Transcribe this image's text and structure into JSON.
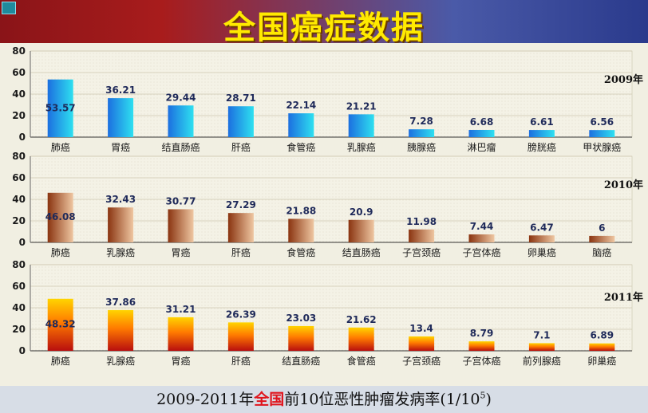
{
  "header": {
    "title": "全国癌症数据"
  },
  "footer": {
    "part1": "2009-2011年",
    "part2": "全国",
    "part3": "前10位恶性肿瘤发病率(1/10",
    "sup": "5",
    "part4": ")"
  },
  "chart_data": [
    {
      "type": "bar",
      "title": "2009年",
      "ylim": [
        0,
        80
      ],
      "yticks": [
        0,
        20,
        40,
        60,
        80
      ],
      "grid": true,
      "categories": [
        "肺癌",
        "胃癌",
        "结直肠癌",
        "肝癌",
        "食管癌",
        "乳腺癌",
        "胰腺癌",
        "淋巴瘤",
        "膀胱癌",
        "甲状腺癌"
      ],
      "values": [
        53.57,
        36.21,
        29.44,
        28.71,
        22.14,
        21.21,
        7.28,
        6.68,
        6.61,
        6.56
      ],
      "labels": [
        "53.57",
        "36.21",
        "29.44",
        "28.71",
        "22.14",
        "21.21",
        "7.28",
        "6.68",
        "6.61",
        "6.56"
      ],
      "color": "#1e88e0"
    },
    {
      "type": "bar",
      "title": "2010年",
      "ylim": [
        0,
        80
      ],
      "yticks": [
        0,
        20,
        40,
        60,
        80
      ],
      "grid": true,
      "categories": [
        "肺癌",
        "乳腺癌",
        "胃癌",
        "肝癌",
        "食管癌",
        "结直肠癌",
        "子宫颈癌",
        "子宫体癌",
        "卵巢癌",
        "脑癌"
      ],
      "values": [
        46.08,
        32.43,
        30.77,
        27.29,
        21.88,
        20.9,
        11.98,
        7.44,
        6.47,
        6
      ],
      "labels": [
        "46.08",
        "32.43",
        "30.77",
        "27.29",
        "21.88",
        "20.9",
        "11.98",
        "7.44",
        "6.47",
        "6"
      ],
      "color": "#9a4a22"
    },
    {
      "type": "bar",
      "title": "2011年",
      "ylim": [
        0,
        80
      ],
      "yticks": [
        0,
        20,
        40,
        60,
        80
      ],
      "grid": true,
      "categories": [
        "肺癌",
        "乳腺癌",
        "胃癌",
        "肝癌",
        "结直肠癌",
        "食管癌",
        "子宫颈癌",
        "子宫体癌",
        "前列腺癌",
        "卵巢癌"
      ],
      "values": [
        48.32,
        37.86,
        31.21,
        26.39,
        23.03,
        21.62,
        13.4,
        8.79,
        7.1,
        6.89
      ],
      "labels": [
        "48.32",
        "37.86",
        "31.21",
        "26.39",
        "23.03",
        "21.62",
        "13.4",
        "8.79",
        "7.1",
        "6.89"
      ],
      "color": "#e0301c"
    }
  ]
}
